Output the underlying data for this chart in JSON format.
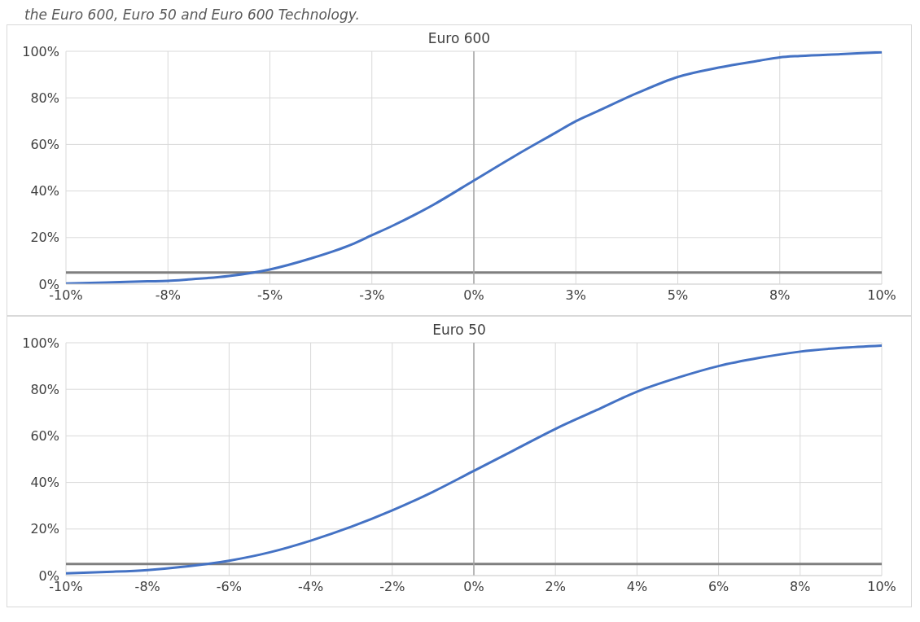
{
  "chart_data": [
    {
      "type": "line",
      "title": "Euro 600",
      "annotations": [
        "the Euro 600, Euro 50 and Euro 600 Technology."
      ],
      "x": [
        -10,
        -9,
        -8,
        -7.5,
        -7,
        -6,
        -5,
        -4,
        -3,
        -2.5,
        -2,
        -1,
        0,
        1,
        2,
        2.5,
        3,
        4,
        5,
        6,
        7,
        7.5,
        8,
        9,
        10
      ],
      "series": [
        {
          "color": "#4472c4",
          "values": [
            0.3,
            0.7,
            1.2,
            1.4,
            2,
            3.5,
            6.3,
            11,
            17,
            21,
            25,
            34,
            44.5,
            55,
            65,
            70,
            74,
            82,
            89,
            93,
            96,
            97.4,
            98,
            98.8,
            99.6
          ]
        }
      ],
      "xlim": [
        -10,
        10
      ],
      "xticks": [
        {
          "value": -10,
          "label": "-10%"
        },
        {
          "value": -7.5,
          "label": "-8%"
        },
        {
          "value": -5,
          "label": "-5%"
        },
        {
          "value": -2.5,
          "label": "-3%"
        },
        {
          "value": 0,
          "label": "0%"
        },
        {
          "value": 2.5,
          "label": "3%"
        },
        {
          "value": 5,
          "label": "5%"
        },
        {
          "value": 7.5,
          "label": "8%"
        },
        {
          "value": 10,
          "label": "10%"
        }
      ],
      "ylim": [
        0,
        100
      ],
      "yticks": [
        {
          "value": 0,
          "label": "0%"
        },
        {
          "value": 20,
          "label": "20%"
        },
        {
          "value": 40,
          "label": "40%"
        },
        {
          "value": 60,
          "label": "60%"
        },
        {
          "value": 80,
          "label": "80%"
        },
        {
          "value": 100,
          "label": "100%"
        }
      ],
      "grid": true,
      "ref_lines": [
        {
          "axis": "y",
          "value": 5,
          "color": "#7f7f7f"
        },
        {
          "axis": "x",
          "value": 0,
          "color": "#a6a6a6"
        }
      ]
    },
    {
      "type": "line",
      "title": "Euro 50",
      "x": [
        -10,
        -9,
        -8,
        -7,
        -6,
        -5,
        -4,
        -3,
        -2,
        -1,
        0,
        1,
        2,
        3,
        4,
        5,
        6,
        7,
        8,
        9,
        10
      ],
      "series": [
        {
          "color": "#4472c4",
          "values": [
            1,
            1.6,
            2.4,
            4,
            6.4,
            10,
            15,
            21,
            28,
            36,
            45,
            54,
            63,
            71,
            79,
            85,
            90,
            93.5,
            96.2,
            97.8,
            98.8
          ]
        }
      ],
      "xlim": [
        -10,
        10
      ],
      "xticks": [
        {
          "value": -10,
          "label": "-10%"
        },
        {
          "value": -8,
          "label": "-8%"
        },
        {
          "value": -6,
          "label": "-6%"
        },
        {
          "value": -4,
          "label": "-4%"
        },
        {
          "value": -2,
          "label": "-2%"
        },
        {
          "value": 0,
          "label": "0%"
        },
        {
          "value": 2,
          "label": "2%"
        },
        {
          "value": 4,
          "label": "4%"
        },
        {
          "value": 6,
          "label": "6%"
        },
        {
          "value": 8,
          "label": "8%"
        },
        {
          "value": 10,
          "label": "10%"
        }
      ],
      "ylim": [
        0,
        100
      ],
      "yticks": [
        {
          "value": 0,
          "label": "0%"
        },
        {
          "value": 20,
          "label": "20%"
        },
        {
          "value": 40,
          "label": "40%"
        },
        {
          "value": 60,
          "label": "60%"
        },
        {
          "value": 80,
          "label": "80%"
        },
        {
          "value": 100,
          "label": "100%"
        }
      ],
      "grid": true,
      "ref_lines": [
        {
          "axis": "y",
          "value": 5,
          "color": "#7f7f7f"
        },
        {
          "axis": "x",
          "value": 0,
          "color": "#a6a6a6"
        }
      ]
    }
  ]
}
